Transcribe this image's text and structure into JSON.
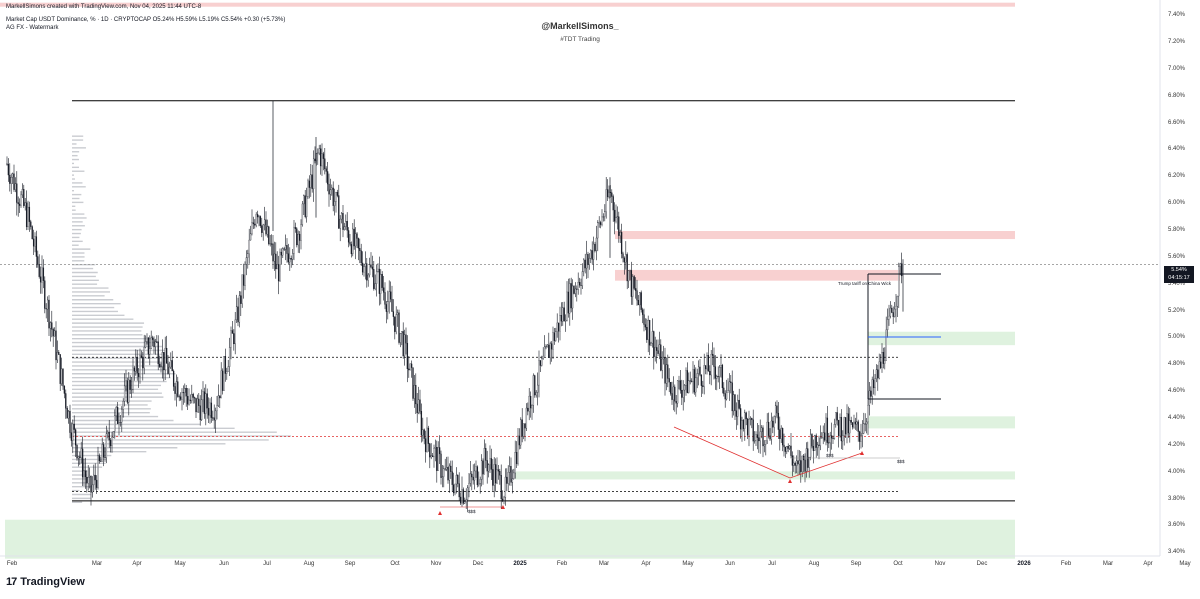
{
  "header": {
    "credit": "MarkellSimons created with TradingView.com, Nov 04, 2025 11:44 UTC-8",
    "symbol_line": "Market Cap USDT Dominance, % · 1D · CRYPTOCAP  O5.24%  H5.59%  L5.19%  C5.54%  +0.30 (+5.73%)",
    "indicator_line": "AG FX - Watermark"
  },
  "watermark": {
    "handle": "@MarkellSimons_",
    "tag": "#TDT Trading"
  },
  "price_tag": {
    "value": "5.54%",
    "countdown": "04:15:17"
  },
  "annotations": {
    "tariff": "Trump tariff on China Wick",
    "sss_labels": [
      "$$$",
      "$$$",
      "$$$"
    ]
  },
  "logo": {
    "text": "TradingView",
    "mark": "17"
  },
  "chart_data": {
    "type": "candlestick",
    "title": "Market Cap USDT Dominance, %",
    "ohlc_last": {
      "open": 5.24,
      "high": 5.59,
      "low": 5.19,
      "close": 5.54,
      "change": 0.3,
      "change_pct": 5.73
    },
    "y_axis_labels": [
      "7.40%",
      "7.20%",
      "7.00%",
      "6.80%",
      "6.60%",
      "6.40%",
      "6.20%",
      "6.00%",
      "5.80%",
      "5.60%",
      "5.40%",
      "5.20%",
      "5.00%",
      "4.80%",
      "4.60%",
      "4.40%",
      "4.20%",
      "4.00%",
      "3.80%",
      "3.60%",
      "3.40%"
    ],
    "x_axis_labels": [
      "Feb",
      "Mar",
      "Apr",
      "May",
      "Jun",
      "Jul",
      "Aug",
      "Sep",
      "Oct",
      "Nov",
      "Dec",
      "2025",
      "Feb",
      "Mar",
      "Apr",
      "May",
      "Jun",
      "Jul",
      "Aug",
      "Sep",
      "Oct",
      "Nov",
      "Dec",
      "2026",
      "Feb",
      "Mar",
      "Apr",
      "May"
    ],
    "bold_x_labels": [
      "2025",
      "2026"
    ],
    "ylim": [
      3.38,
      7.52
    ],
    "points": [
      {
        "label": "Feb",
        "value": 6.3
      },
      {
        "label": "",
        "value": 5.9
      },
      {
        "label": "Mar",
        "value": 5.2
      },
      {
        "label": "",
        "value": 4.4
      },
      {
        "label": "",
        "value": 3.85
      },
      {
        "label": "Apr",
        "value": 4.3
      },
      {
        "label": "",
        "value": 4.7
      },
      {
        "label": "May",
        "value": 5.0
      },
      {
        "label": "",
        "value": 4.7
      },
      {
        "label": "Jun",
        "value": 4.5
      },
      {
        "label": "",
        "value": 4.5
      },
      {
        "label": "Jul",
        "value": 5.1
      },
      {
        "label": "",
        "value": 6.0
      },
      {
        "label": "Aug",
        "value": 5.5
      },
      {
        "label": "",
        "value": 5.8
      },
      {
        "label": "Sep",
        "value": 6.4
      },
      {
        "label": "",
        "value": 5.9
      },
      {
        "label": "Oct",
        "value": 5.6
      },
      {
        "label": "",
        "value": 5.4
      },
      {
        "label": "Nov",
        "value": 5.0
      },
      {
        "label": "",
        "value": 4.3
      },
      {
        "label": "Dec",
        "value": 4.0
      },
      {
        "label": "",
        "value": 3.85
      },
      {
        "label": "2025",
        "value": 4.1
      },
      {
        "label": "",
        "value": 3.85
      },
      {
        "label": "Feb",
        "value": 4.5
      },
      {
        "label": "",
        "value": 4.9
      },
      {
        "label": "Mar",
        "value": 5.3
      },
      {
        "label": "",
        "value": 5.6
      },
      {
        "label": "Apr",
        "value": 6.1
      },
      {
        "label": "",
        "value": 5.4
      },
      {
        "label": "May",
        "value": 5.0
      },
      {
        "label": "",
        "value": 4.6
      },
      {
        "label": "Jun",
        "value": 4.7
      },
      {
        "label": "",
        "value": 4.8
      },
      {
        "label": "Jul",
        "value": 4.5
      },
      {
        "label": "",
        "value": 4.25
      },
      {
        "label": "Aug",
        "value": 4.4
      },
      {
        "label": "",
        "value": 4.0
      },
      {
        "label": "Sep",
        "value": 4.3
      },
      {
        "label": "",
        "value": 4.35
      },
      {
        "label": "Oct",
        "value": 4.3
      },
      {
        "label": "",
        "value": 4.8
      },
      {
        "label": "Nov",
        "value": 5.54
      }
    ],
    "levels": [
      {
        "value": 6.77,
        "color": "#000000"
      },
      {
        "value": 3.79,
        "color": "#000000"
      },
      {
        "value": 4.86,
        "color": "#000000",
        "dashed": true
      },
      {
        "value": 3.86,
        "color": "#000000",
        "dashed": true
      },
      {
        "value": 4.27,
        "color": "#e03030",
        "dashed": true
      },
      {
        "value": 5.55,
        "color": "#999999",
        "dashed": true
      }
    ],
    "zones": [
      {
        "from": 7.47,
        "to": 7.5,
        "color": "#f8d0d0"
      },
      {
        "from": 5.74,
        "to": 5.8,
        "color": "#f8d0d0"
      },
      {
        "from": 5.43,
        "to": 5.51,
        "color": "#f8d0d0"
      },
      {
        "from": 4.95,
        "to": 5.05,
        "color": "#dff2df"
      },
      {
        "from": 4.33,
        "to": 4.42,
        "color": "#dff2df"
      },
      {
        "from": 3.95,
        "to": 4.01,
        "color": "#dff2df"
      },
      {
        "from": 3.36,
        "to": 3.65,
        "color": "#dff2df"
      }
    ],
    "colors": {
      "candle": "#131722",
      "grid": "#f0f3fa",
      "support": "#e03030",
      "accent": "#2962ff"
    }
  }
}
